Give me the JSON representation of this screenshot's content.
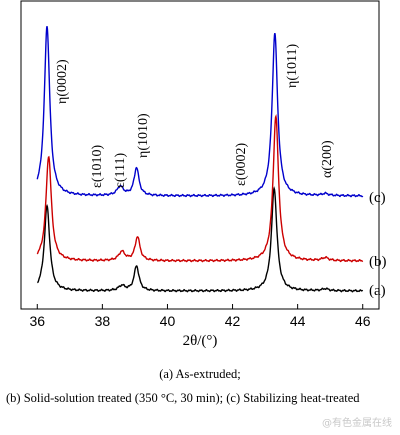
{
  "chart_data": {
    "type": "line",
    "title": "",
    "xlabel": "2θ/(°)",
    "ylabel": "",
    "xlim": [
      35.5,
      46.5
    ],
    "x_ticks": [
      36,
      38,
      40,
      42,
      44,
      46
    ],
    "y_ticks_shown": false,
    "grid": false,
    "series": [
      {
        "name": "(a)",
        "color": "#000000",
        "offset": 0,
        "peaks": [
          {
            "x": 36.3,
            "height": 85,
            "width": 0.1
          },
          {
            "x": 38.6,
            "height": 5,
            "width": 0.12
          },
          {
            "x": 39.05,
            "height": 25,
            "width": 0.09
          },
          {
            "x": 43.28,
            "height": 103,
            "width": 0.1
          },
          {
            "x": 44.85,
            "height": 2,
            "width": 0.12
          }
        ]
      },
      {
        "name": "(b)",
        "color": "#cc0000",
        "offset": 30,
        "peaks": [
          {
            "x": 36.35,
            "height": 105,
            "width": 0.1
          },
          {
            "x": 38.6,
            "height": 9,
            "width": 0.12
          },
          {
            "x": 39.08,
            "height": 24,
            "width": 0.09
          },
          {
            "x": 43.33,
            "height": 145,
            "width": 0.1
          },
          {
            "x": 44.85,
            "height": 3,
            "width": 0.12
          }
        ]
      },
      {
        "name": "(c)",
        "color": "#0000cc",
        "offset": 95,
        "peaks": [
          {
            "x": 36.3,
            "height": 170,
            "width": 0.1
          },
          {
            "x": 38.55,
            "height": 9,
            "width": 0.12
          },
          {
            "x": 39.05,
            "height": 28,
            "width": 0.09
          },
          {
            "x": 43.3,
            "height": 163,
            "width": 0.1
          },
          {
            "x": 44.85,
            "height": 2,
            "width": 0.12
          }
        ]
      }
    ],
    "annotations": [
      {
        "text": "η(0002)",
        "x": 36.3
      },
      {
        "text": "ε(1010)",
        "x": 38.0
      },
      {
        "text": "ε(111)",
        "x": 38.6
      },
      {
        "text": "η(1010)",
        "x": 39.05
      },
      {
        "text": "ε(0002)",
        "x": 42.05
      },
      {
        "text": "η(1011)",
        "x": 43.3
      },
      {
        "text": "α(200)",
        "x": 44.85
      }
    ]
  },
  "captions": {
    "a": "(a) As-extruded;",
    "b": "(b) Solid-solution treated (350 °C, 30 min); (c) Stabilizing heat-treated"
  },
  "watermark": "@有色金属在线"
}
